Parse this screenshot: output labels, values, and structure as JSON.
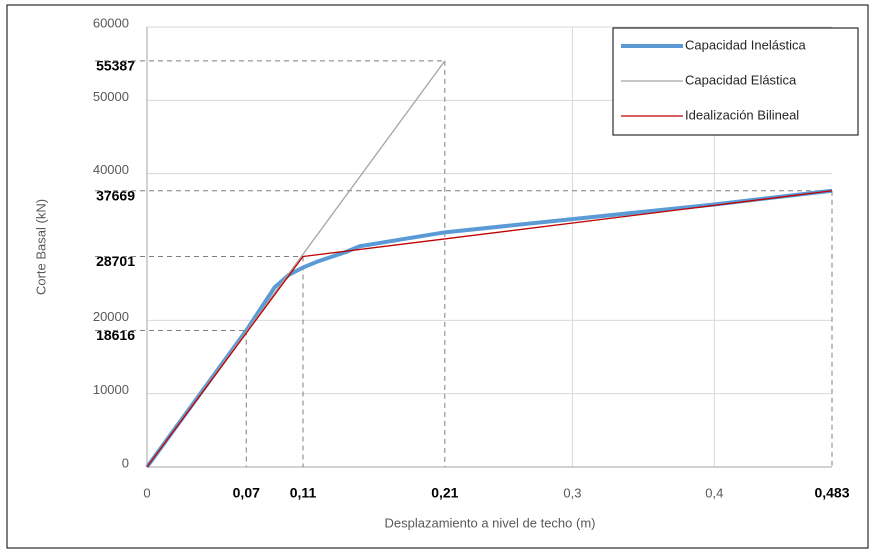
{
  "chart_data": {
    "type": "line",
    "x_label": "Desplazamiento a nivel de techo (m)",
    "y_label": "Corte Basal (kN)",
    "xlim": [
      0,
      0.483
    ],
    "ylim": [
      0,
      60000
    ],
    "xticks": [
      0,
      {
        "value": 0.3,
        "label": "0,3"
      },
      {
        "value": 0.4,
        "label": "0,4"
      }
    ],
    "ref_xticks": [
      {
        "value": 0.07,
        "label": "0,07"
      },
      {
        "value": 0.11,
        "label": "0,11"
      },
      {
        "value": 0.21,
        "label": "0,21"
      },
      {
        "value": 0.483,
        "label": "0,483"
      }
    ],
    "yticks": [
      0,
      10000,
      20000,
      40000,
      50000,
      60000
    ],
    "ref_yticks": [
      18616,
      28701,
      37669,
      55387
    ],
    "markers": [
      {
        "x": 0.07,
        "y": 18616
      },
      {
        "x": 0.11,
        "y": 28701
      },
      {
        "x": 0.21,
        "y": 55387
      },
      {
        "x": 0.483,
        "y": 37669
      }
    ],
    "grid": true,
    "legend": "upper right",
    "series": [
      {
        "name": "Capacidad Inelástica",
        "color": "#5b9bd5",
        "width": 4,
        "x": [
          0,
          0.07,
          0.09,
          0.1,
          0.11,
          0.12,
          0.14,
          0.15,
          0.21,
          0.3,
          0.4,
          0.483
        ],
        "values": [
          0,
          18616,
          24500,
          26200,
          27200,
          28000,
          29300,
          30100,
          32000,
          33800,
          35800,
          37669
        ]
      },
      {
        "name": "Capacidad Elástica",
        "color": "#a5a5a5",
        "width": 1.3,
        "x": [
          0,
          0.21
        ],
        "values": [
          0,
          55387
        ]
      },
      {
        "name": "Idealización Bilineal",
        "color": "#c00000",
        "width": 1.3,
        "x": [
          0,
          0.11,
          0.483
        ],
        "values": [
          0,
          28701,
          37669
        ]
      }
    ]
  }
}
